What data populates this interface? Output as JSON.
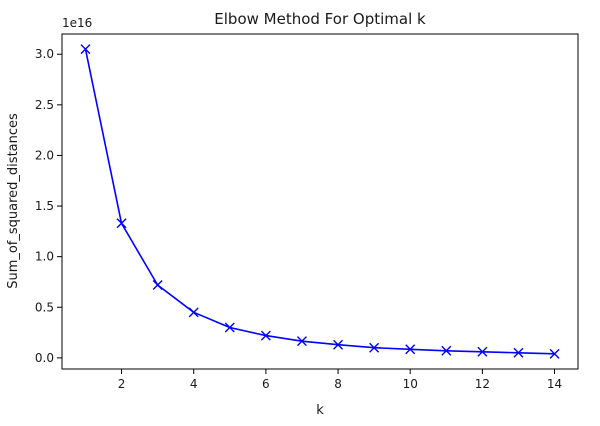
{
  "chart_data": {
    "type": "line",
    "title": "Elbow Method For Optimal k",
    "xlabel": "k",
    "ylabel": "Sum_of_squared_distances",
    "y_offset_label": "1e16",
    "x": [
      1,
      2,
      3,
      4,
      5,
      6,
      7,
      8,
      9,
      10,
      11,
      12,
      13,
      14
    ],
    "series": [
      {
        "marker": "x",
        "color": "#0000ff",
        "values": [
          3.05,
          1.33,
          0.72,
          0.45,
          0.3,
          0.22,
          0.165,
          0.13,
          0.1,
          0.085,
          0.07,
          0.06,
          0.05,
          0.04
        ]
      }
    ],
    "x_ticks": [
      2,
      4,
      6,
      8,
      10,
      12,
      14
    ],
    "x_tick_labels": [
      "2",
      "4",
      "6",
      "8",
      "10",
      "12",
      "14"
    ],
    "y_ticks": [
      0.0,
      0.5,
      1.0,
      1.5,
      2.0,
      2.5,
      3.0
    ],
    "y_tick_labels": [
      "0.0",
      "0.5",
      "1.0",
      "1.5",
      "2.0",
      "2.5",
      "3.0"
    ],
    "xlim": [
      0.35,
      14.65
    ],
    "ylim": [
      -0.11,
      3.2
    ],
    "grid": false,
    "legend": "none"
  }
}
